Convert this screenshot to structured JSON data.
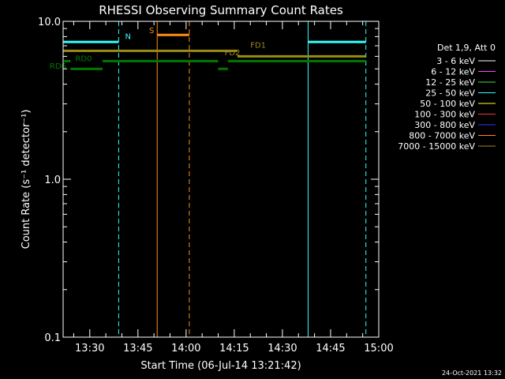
{
  "chart_data": {
    "type": "line",
    "title": "RHESSI Observing Summary Count Rates",
    "xlabel": "Start Time (06-Jul-14 13:21:42)",
    "ylabel": "Count Rate (s⁻¹ detector⁻¹)",
    "ylog": true,
    "xlim": [
      "13:21:42",
      "15:00:00"
    ],
    "ylim": [
      0.1,
      10.0
    ],
    "y_ticks": [
      {
        "value": 0.1,
        "label": "0.1"
      },
      {
        "value": 1.0,
        "label": "1.0"
      },
      {
        "value": 10.0,
        "label": "10.0"
      }
    ],
    "x_ticks": [
      "13:30",
      "13:45",
      "14:00",
      "14:15",
      "14:30",
      "14:45",
      "15:00"
    ],
    "legend": {
      "placement": "right",
      "header": "Det 1,9, Att 0",
      "entries": [
        {
          "label": "3 - 6 keV",
          "color": "#ffffff"
        },
        {
          "label": "6 - 12 keV",
          "color": "#ff44ff"
        },
        {
          "label": "12 - 25 keV",
          "color": "#44dd44"
        },
        {
          "label": "25 - 50 keV",
          "color": "#33ffff"
        },
        {
          "label": "50 - 100 keV",
          "color": "#ffff33"
        },
        {
          "label": "100 - 300 keV",
          "color": "#ff3333"
        },
        {
          "label": "300 - 800 keV",
          "color": "#3333ff"
        },
        {
          "label": "800 - 7000 keV",
          "color": "#ff8c1a"
        },
        {
          "label": "7000 - 15000 keV",
          "color": "#9a8a1a"
        }
      ]
    },
    "vlines": [
      {
        "time": "13:21:42",
        "style": "solid",
        "color": "#33ffff"
      },
      {
        "time": "13:39:00",
        "style": "dashed",
        "color": "#33ffff"
      },
      {
        "time": "13:51:00",
        "style": "solid",
        "color": "#ff8c1a"
      },
      {
        "time": "14:01:00",
        "style": "dashed",
        "color": "#ff8c1a"
      },
      {
        "time": "14:38:00",
        "style": "solid",
        "color": "#33ffff"
      },
      {
        "time": "14:56:00",
        "style": "dashed",
        "color": "#33ffff"
      }
    ],
    "flag_bars": [
      {
        "start": "13:21:42",
        "end": "13:39:00",
        "y": 7.4,
        "color": "#33ffff"
      },
      {
        "start": "14:38:00",
        "end": "14:56:00",
        "y": 7.4,
        "color": "#33ffff"
      },
      {
        "start": "13:51:00",
        "end": "14:01:00",
        "y": 8.2,
        "color": "#ff8c1a"
      },
      {
        "start": "13:21:42",
        "end": "14:16:00",
        "y": 6.5,
        "color": "#9a8a1a"
      },
      {
        "start": "14:16:00",
        "end": "14:56:00",
        "y": 6.0,
        "color": "#9a8a1a"
      },
      {
        "start": "13:22:00",
        "end": "13:24:00",
        "y": 5.6,
        "color": "#007a00"
      },
      {
        "start": "13:34:00",
        "end": "14:10:00",
        "y": 5.6,
        "color": "#007a00"
      },
      {
        "start": "14:13:00",
        "end": "14:56:00",
        "y": 5.6,
        "color": "#007a00"
      },
      {
        "start": "13:24:00",
        "end": "13:34:00",
        "y": 5.0,
        "color": "#007a00"
      },
      {
        "start": "14:10:00",
        "end": "14:13:00",
        "y": 5.0,
        "color": "#007a00"
      }
    ],
    "annotations": [
      {
        "text": "N",
        "time": "13:41:00",
        "y": 7.7,
        "color": "#33ffff"
      },
      {
        "text": "S",
        "time": "13:48:30",
        "y": 8.4,
        "color": "#ff8c1a"
      },
      {
        "text": "FD1",
        "time": "14:20:00",
        "y": 6.8,
        "color": "#9a8a1a"
      },
      {
        "text": "FD2",
        "time": "14:12:00",
        "y": 6.1,
        "color": "#9a8a1a"
      },
      {
        "text": "RD0",
        "time": "13:25:30",
        "y": 5.6,
        "color": "#007a00"
      },
      {
        "text": "RD6",
        "time": "13:17:30",
        "y": 5.0,
        "color": "#007a00"
      }
    ]
  },
  "footer": {
    "timestamp": "24-Oct-2021 13:32"
  }
}
